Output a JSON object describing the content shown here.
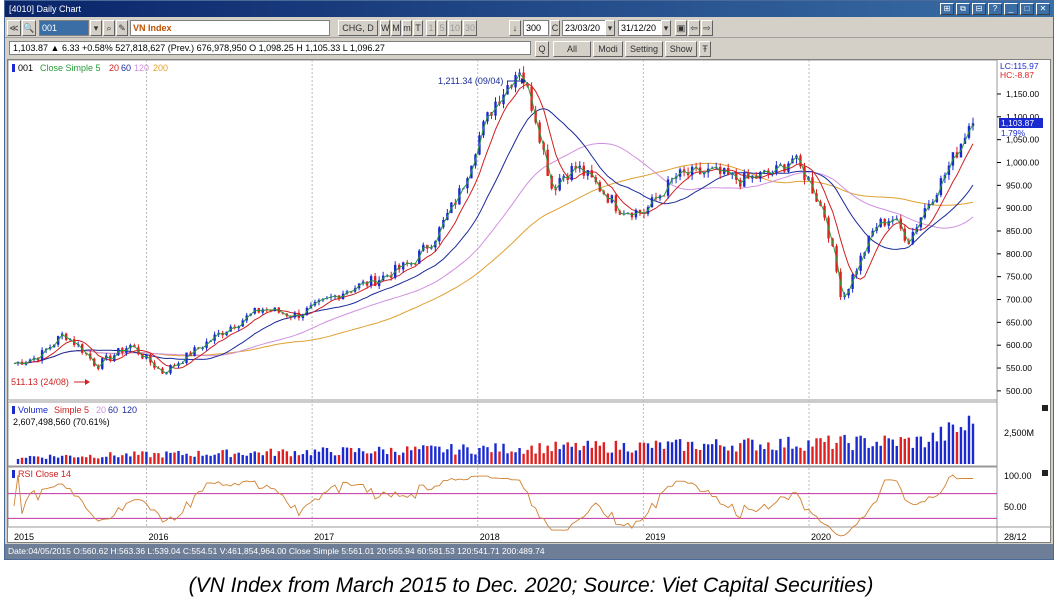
{
  "window": {
    "title": "[4010] Daily Chart",
    "buttons": [
      "⊞",
      "⧉",
      "⊟",
      "?",
      "_",
      "□",
      "✕"
    ]
  },
  "toolbar": {
    "symbol_code": "001",
    "symbol_name": "VN Index",
    "chg_label": "CHG, D",
    "periods": [
      "W",
      "M",
      "m",
      "T",
      "1",
      "5",
      "10",
      "30"
    ],
    "count_value": "300",
    "c_label": "C",
    "date_from": "23/03/20",
    "date_to": "31/12/20",
    "icons": [
      "save-icon",
      "back-icon",
      "forward-icon"
    ]
  },
  "infobar": {
    "quote": "1,103.87 ▲ 6.33 +0.58% 527,818,627 (Prev.) 676,978,950 O 1,098.25 H 1,105.33 L 1,096.27",
    "q_label": "Q",
    "all_label": "All",
    "modi_label": "Modi",
    "setting_label": "Setting",
    "show_label": "Show",
    "pin_label": "Ŧ"
  },
  "price_panel": {
    "legend_code": "001",
    "legend_ma": "Close Simple 5",
    "legend_periods": [
      "20",
      "60",
      "120",
      "200"
    ],
    "lc_label": "LC:115.97",
    "hc_label": "HC:-8.87",
    "last_value": "1,103.87",
    "last_pct": "1.79%",
    "peak_label": "1,211.34 (09/04)",
    "low_label": "511.13 (24/08)",
    "y_ticks": [
      "1,150.00",
      "1,100.00",
      "1,050.00",
      "1,000.00",
      "950.00",
      "900.00",
      "850.00",
      "800.00",
      "750.00",
      "700.00",
      "650.00",
      "600.00",
      "550.00",
      "500.00"
    ]
  },
  "volume_panel": {
    "legend_name": "Volume",
    "legend_ma": "Simple 5",
    "legend_periods": [
      "20",
      "60",
      "120"
    ],
    "value_text": "2,607,498,560 (70.61%)",
    "y_tick": "2,500M"
  },
  "rsi_panel": {
    "legend": "RSI Close 14",
    "y_ticks": [
      "100.00",
      "50.00"
    ]
  },
  "x_axis": {
    "labels": [
      "2015",
      "2016",
      "2017",
      "2018",
      "2019",
      "2020"
    ],
    "right_label": "28/12"
  },
  "status": "Date:04/05/2015  O:560.62  H:563.36  L:539.04  C:554.51  V:461,854,964.00  Close Simple 5:561.01  20:565.94  60:581.53  120:541.71  200:489.74",
  "caption": "(VN Index from March 2015 to Dec. 2020; Source: Viet Capital Securities)",
  "colors": {
    "ma5": "#2a9a3a",
    "ma20": "#d02020",
    "ma60": "#1a2a9a",
    "ma120": "#d090e0",
    "ma200": "#e0a030",
    "up": "#1a2ad0",
    "down": "#e02020"
  },
  "chart_data": {
    "type": "line",
    "title": "VN Index",
    "xlabel": "",
    "ylabel": "",
    "ylim": [
      480,
      1220
    ],
    "x": [
      2015.2,
      2015.35,
      2015.5,
      2015.6,
      2015.7,
      2015.9,
      2016.0,
      2016.1,
      2016.3,
      2016.5,
      2016.7,
      2016.9,
      2017.0,
      2017.2,
      2017.4,
      2017.6,
      2017.75,
      2017.9,
      2018.0,
      2018.1,
      2018.2,
      2018.25,
      2018.35,
      2018.45,
      2018.5,
      2018.6,
      2018.75,
      2018.85,
      2019.0,
      2019.2,
      2019.4,
      2019.6,
      2019.8,
      2019.9,
      2020.0,
      2020.1,
      2020.2,
      2020.3,
      2020.4,
      2020.5,
      2020.6,
      2020.7,
      2020.8,
      2020.9,
      2020.99
    ],
    "series": [
      {
        "name": "VN Index",
        "values": [
          560,
          575,
          625,
          595,
          555,
          600,
          570,
          540,
          590,
          640,
          680,
          665,
          680,
          720,
          745,
          780,
          840,
          940,
          1050,
          1130,
          1180,
          1211,
          1100,
          940,
          970,
          990,
          940,
          900,
          890,
          970,
          980,
          960,
          980,
          1010,
          960,
          880,
          700,
          780,
          860,
          880,
          830,
          900,
          960,
          1030,
          1104
        ]
      }
    ],
    "ma_legend": [
      "Close Simple 5",
      "20",
      "60",
      "120",
      "200"
    ],
    "annotations": [
      "1,211.34 (09/04)",
      "511.13 (24/08)"
    ],
    "volume": {
      "name": "Volume",
      "last": "2,607,498,560",
      "ma": [
        "Simple 5",
        "20",
        "60",
        "120"
      ]
    },
    "rsi": {
      "name": "RSI Close 14",
      "levels": [
        70,
        30
      ]
    }
  }
}
